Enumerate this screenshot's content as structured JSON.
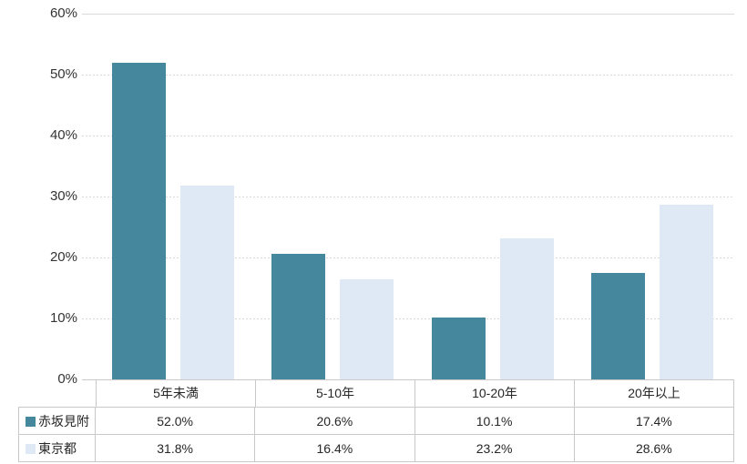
{
  "chart_data": {
    "type": "bar",
    "title": "",
    "categories": [
      "5年未満",
      "5-10年",
      "10-20年",
      "20年以上"
    ],
    "series": [
      {
        "name": "赤坂見附",
        "color": "#45889E",
        "values": [
          52.0,
          20.6,
          10.1,
          17.4
        ],
        "formatted": [
          "52.0%",
          "20.6%",
          "10.1%",
          "17.4%"
        ]
      },
      {
        "name": "東京都",
        "color": "#DEE9F5",
        "values": [
          31.8,
          16.4,
          23.2,
          28.6
        ],
        "formatted": [
          "31.8%",
          "16.4%",
          "23.2%",
          "28.6%"
        ]
      }
    ],
    "y_axis": {
      "ticks": [
        "0%",
        "10%",
        "20%",
        "30%",
        "40%",
        "50%",
        "60%"
      ],
      "min": 0,
      "max": 60
    },
    "grid": "horizontal-dashed",
    "legend_position": "table-left",
    "colors": {
      "gridline": "#D9D9D9",
      "table_border": "#C9C9C9",
      "text": "#262626"
    }
  }
}
